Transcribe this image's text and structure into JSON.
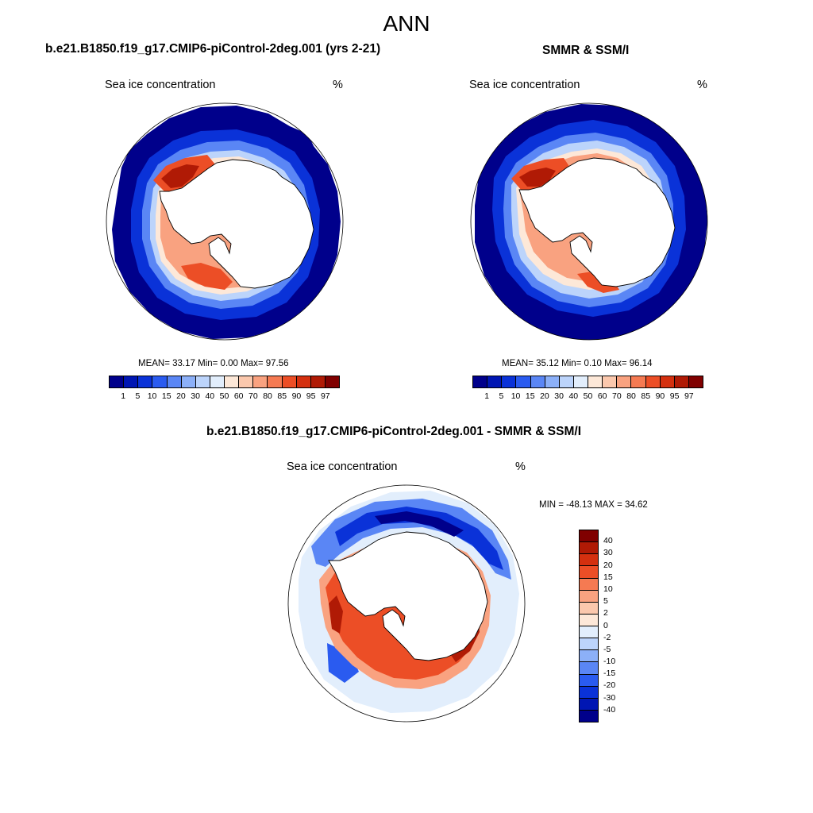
{
  "main_title": "ANN",
  "panels": [
    {
      "title": "b.e21.B1850.f19_g17.CMIP6-piControl-2deg.001 (yrs 2-21)",
      "variable": "Sea ice concentration",
      "units": "%",
      "stats": "MEAN=  33.17  Min=   0.00  Max=  97.56"
    },
    {
      "title": "SMMR & SSM/I",
      "variable": "Sea ice concentration",
      "units": "%",
      "stats": "MEAN=  35.12  Min=   0.10  Max=  96.14"
    },
    {
      "title": "b.e21.B1850.f19_g17.CMIP6-piControl-2deg.001 - SMMR & SSM/I",
      "variable": "Sea ice concentration",
      "units": "%",
      "stats": "MIN = -48.13 MAX =  34.62"
    }
  ],
  "colorbar_abs": {
    "colors": [
      "#00008b",
      "#0016b3",
      "#0a32d8",
      "#2a5bf0",
      "#5a86f5",
      "#8cb0f8",
      "#bcd4fb",
      "#e2eefc",
      "#fde8d8",
      "#fbc8ad",
      "#f9a280",
      "#f57a52",
      "#ec4e26",
      "#d4300f",
      "#b01a05",
      "#800000"
    ],
    "labels": [
      "1",
      "5",
      "10",
      "15",
      "20",
      "30",
      "40",
      "50",
      "60",
      "70",
      "80",
      "85",
      "90",
      "95",
      "97"
    ]
  },
  "colorbar_diff": {
    "colors": [
      "#800000",
      "#b01a05",
      "#d4300f",
      "#ec4e26",
      "#f57a52",
      "#f9a280",
      "#fbc8ad",
      "#fde8d8",
      "#e2eefc",
      "#bcd4fb",
      "#8cb0f8",
      "#5a86f5",
      "#2a5bf0",
      "#0a32d8",
      "#0016b3",
      "#00008b"
    ],
    "labels": [
      "40",
      "30",
      "20",
      "15",
      "10",
      "5",
      "2",
      "0",
      "-2",
      "-5",
      "-10",
      "-15",
      "-20",
      "-30",
      "-40"
    ]
  }
}
